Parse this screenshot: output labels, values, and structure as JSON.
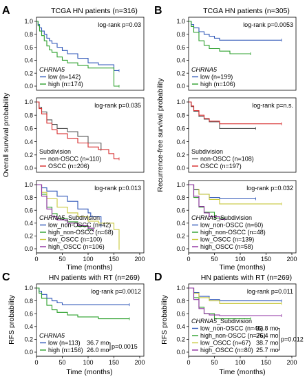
{
  "panels": [
    {
      "key": "A-top",
      "letter": "A",
      "title": "TCGA HN patients (n=316)",
      "logrank": "log-rank p=0.03",
      "legend_title": "CHRNA5",
      "legend_title_style": "italic",
      "legend": [
        {
          "label": "low (n=142)",
          "color": "#2e56b8"
        },
        {
          "label": "high (n=174)",
          "color": "#2ca02c"
        }
      ],
      "medians": [],
      "median_p": ""
    },
    {
      "key": "A-mid",
      "letter": "",
      "title": "",
      "logrank": "log-rank p=0.035",
      "legend_title": "Subdivision",
      "legend_title_style": "normal",
      "legend": [
        {
          "label": "non-OSCC (n=110)",
          "color": "#555555"
        },
        {
          "label": "OSCC (n=206)",
          "color": "#d62728"
        }
      ],
      "medians": [],
      "median_p": ""
    },
    {
      "key": "A-bot",
      "letter": "",
      "title": "",
      "logrank": "log-rank p=0.013",
      "legend_title": "CHRNA5_Subdivision",
      "legend_title_style": "italic-prefix",
      "legend": [
        {
          "label": "low_non-OSCC (n=42)",
          "color": "#2e56b8"
        },
        {
          "label": "high_non-OSCC (n=68)",
          "color": "#2ca02c"
        },
        {
          "label": "low_OSCC (n=100)",
          "color": "#c8c83a"
        },
        {
          "label": "high_OSCC (n=106)",
          "color": "#8e2ea0"
        }
      ],
      "medians": [],
      "median_p": ""
    },
    {
      "key": "B-top",
      "letter": "B",
      "title": "TCGA HN patients (n=305)",
      "logrank": "log-rank p=0.0053",
      "legend_title": "CHRNA5",
      "legend_title_style": "italic",
      "legend": [
        {
          "label": "low (n=199)",
          "color": "#2e56b8"
        },
        {
          "label": "high (n=106)",
          "color": "#2ca02c"
        }
      ],
      "medians": [],
      "median_p": ""
    },
    {
      "key": "B-mid",
      "letter": "",
      "title": "",
      "logrank": "log-rank p=n.s.",
      "legend_title": "Subdivision",
      "legend_title_style": "normal",
      "legend": [
        {
          "label": "non-OSCC (n=108)",
          "color": "#555555"
        },
        {
          "label": "OSCC (n=197)",
          "color": "#d62728"
        }
      ],
      "medians": [],
      "median_p": ""
    },
    {
      "key": "B-bot",
      "letter": "",
      "title": "",
      "logrank": "log-rank p=0.032",
      "legend_title": "CHRNA5_Subdivision",
      "legend_title_style": "italic-prefix",
      "legend": [
        {
          "label": "low_non-OSCC (n=60)",
          "color": "#2e56b8"
        },
        {
          "label": "high_non-OSCC (n=48)",
          "color": "#2ca02c"
        },
        {
          "label": "low_OSCC (n=139)",
          "color": "#c8c83a"
        },
        {
          "label": "high_OSCC (n=58)",
          "color": "#8e2ea0"
        }
      ],
      "medians": [],
      "median_p": ""
    },
    {
      "key": "C",
      "letter": "C",
      "title": "HN patients with RT (n=269)",
      "logrank": "log-rank p=0.0012",
      "legend_title": "CHRNA5",
      "legend_title_style": "italic",
      "legend": [
        {
          "label": "low (n=113)",
          "color": "#2e56b8"
        },
        {
          "label": "high (n=156)",
          "color": "#2ca02c"
        }
      ],
      "medians": [
        {
          "text": "36.7 mo",
          "color": "#2e56b8"
        },
        {
          "text": "26.0 mo",
          "color": "#2ca02c"
        }
      ],
      "median_p": "p=0.0015"
    },
    {
      "key": "D",
      "letter": "D",
      "title": "HN patients with RT (n=269)",
      "logrank": "log-rank p=0.011",
      "legend_title": "CHRNA5_Subdivision",
      "legend_title_style": "italic-prefix",
      "legend": [
        {
          "label": "low_non-OSCC (n=46)",
          "color": "#2e56b8"
        },
        {
          "label": "high_non-OSCC (n=76)",
          "color": "#2ca02c"
        },
        {
          "label": "low_OSCC (n=67)",
          "color": "#c8c83a"
        },
        {
          "label": "high_OSCC (n=80)",
          "color": "#8e2ea0"
        }
      ],
      "medians": [
        {
          "text": "33.8 mo",
          "color": "#2e56b8"
        },
        {
          "text": "26.4 mo",
          "color": "#2ca02c"
        },
        {
          "text": "38.7 mo",
          "color": "#c8c83a"
        },
        {
          "text": "25.7 mo",
          "color": "#8e2ea0"
        }
      ],
      "median_p": "p=0.012"
    }
  ],
  "axis_labels": {
    "A_ylabel": "Overall survival probability",
    "B_ylabel": "Recurrence-free survival probability",
    "C_ylabel": "RFS probability",
    "D_ylabel": "RFS probability",
    "xlabel": "Time (months)"
  },
  "chart_data": [
    {
      "panel": "A-top",
      "type": "line",
      "xlim": [
        0,
        200
      ],
      "ylim": [
        0,
        1
      ],
      "xticks": [],
      "yticks": [
        "0.0",
        "0.2",
        "0.4",
        "0.6",
        "0.8",
        "1.0"
      ],
      "series": [
        {
          "name": "low (n=142)",
          "color": "#2e56b8",
          "x": [
            0,
            3,
            6,
            10,
            15,
            20,
            25,
            30,
            40,
            50,
            60,
            80,
            100,
            120,
            150,
            160
          ],
          "y": [
            1.0,
            0.95,
            0.9,
            0.85,
            0.8,
            0.74,
            0.7,
            0.66,
            0.6,
            0.55,
            0.5,
            0.43,
            0.36,
            0.33,
            0.24,
            0.24
          ]
        },
        {
          "name": "high (n=174)",
          "color": "#2ca02c",
          "x": [
            0,
            3,
            6,
            10,
            15,
            20,
            25,
            30,
            40,
            50,
            60,
            80,
            100,
            120,
            150,
            160
          ],
          "y": [
            1.0,
            0.93,
            0.85,
            0.78,
            0.7,
            0.62,
            0.56,
            0.52,
            0.45,
            0.4,
            0.36,
            0.32,
            0.28,
            0.28,
            0.0,
            0.0
          ]
        }
      ]
    },
    {
      "panel": "A-mid",
      "type": "line",
      "xlim": [
        0,
        200
      ],
      "ylim": [
        0,
        1
      ],
      "xticks": [],
      "yticks": [
        "0.0",
        "0.2",
        "0.4",
        "0.6",
        "0.8",
        "1.0"
      ],
      "series": [
        {
          "name": "non-OSCC (n=110)",
          "color": "#555555",
          "x": [
            0,
            5,
            10,
            20,
            30,
            40,
            60,
            80,
            100,
            125
          ],
          "y": [
            1.0,
            0.92,
            0.85,
            0.73,
            0.66,
            0.6,
            0.55,
            0.48,
            0.38,
            0.28
          ]
        },
        {
          "name": "OSCC (n=206)",
          "color": "#d62728",
          "x": [
            0,
            5,
            10,
            20,
            30,
            40,
            60,
            80,
            100,
            120,
            140,
            150,
            160
          ],
          "y": [
            1.0,
            0.9,
            0.82,
            0.68,
            0.58,
            0.52,
            0.45,
            0.38,
            0.32,
            0.28,
            0.22,
            0.14,
            0.14
          ]
        }
      ]
    },
    {
      "panel": "A-bot",
      "type": "line",
      "xlim": [
        0,
        200
      ],
      "ylim": [
        0,
        1
      ],
      "xticks": [
        "0",
        "50",
        "100",
        "150",
        "200"
      ],
      "yticks": [
        "0.0",
        "0.2",
        "0.4",
        "0.6",
        "0.8",
        "1.0"
      ],
      "series": [
        {
          "name": "low_non-OSCC (n=42)",
          "color": "#2e56b8",
          "x": [
            0,
            10,
            20,
            40,
            60,
            80,
            100,
            105,
            125
          ],
          "y": [
            1.0,
            0.95,
            0.9,
            0.82,
            0.74,
            0.62,
            0.56,
            0.5,
            0.35
          ]
        },
        {
          "name": "high_non-OSCC (n=68)",
          "color": "#2ca02c",
          "x": [
            0,
            10,
            20,
            30,
            40,
            60,
            80,
            100,
            110
          ],
          "y": [
            1.0,
            0.85,
            0.65,
            0.55,
            0.47,
            0.42,
            0.35,
            0.3,
            0.28
          ]
        },
        {
          "name": "low_OSCC (n=100)",
          "color": "#c8c83a",
          "x": [
            0,
            10,
            20,
            40,
            60,
            80,
            100,
            120,
            150,
            160
          ],
          "y": [
            1.0,
            0.88,
            0.78,
            0.65,
            0.56,
            0.5,
            0.43,
            0.4,
            0.3,
            0.0
          ]
        },
        {
          "name": "high_OSCC (n=106)",
          "color": "#8e2ea0",
          "x": [
            0,
            10,
            20,
            30,
            40,
            60,
            80,
            100,
            110
          ],
          "y": [
            1.0,
            0.82,
            0.62,
            0.5,
            0.45,
            0.4,
            0.36,
            0.32,
            0.28
          ]
        }
      ]
    },
    {
      "panel": "B-top",
      "type": "line",
      "xlim": [
        0,
        200
      ],
      "ylim": [
        0,
        1
      ],
      "xticks": [],
      "yticks": [
        "0.0",
        "0.2",
        "0.4",
        "0.6",
        "0.8",
        "1.0"
      ],
      "series": [
        {
          "name": "low (n=199)",
          "color": "#2e56b8",
          "x": [
            0,
            5,
            10,
            20,
            30,
            40,
            50,
            60,
            100,
            180
          ],
          "y": [
            1.0,
            0.95,
            0.9,
            0.84,
            0.8,
            0.77,
            0.74,
            0.71,
            0.71,
            0.71
          ]
        },
        {
          "name": "high (n=106)",
          "color": "#2ca02c",
          "x": [
            0,
            5,
            10,
            20,
            30,
            40,
            60,
            80,
            120
          ],
          "y": [
            1.0,
            0.92,
            0.83,
            0.7,
            0.63,
            0.58,
            0.54,
            0.5,
            0.5
          ]
        }
      ]
    },
    {
      "panel": "B-mid",
      "type": "line",
      "xlim": [
        0,
        200
      ],
      "ylim": [
        0,
        1
      ],
      "xticks": [],
      "yticks": [
        "0.0",
        "0.2",
        "0.4",
        "0.6",
        "0.8",
        "1.0"
      ],
      "series": [
        {
          "name": "non-OSCC (n=108)",
          "color": "#555555",
          "x": [
            0,
            5,
            10,
            20,
            30,
            40,
            60,
            130
          ],
          "y": [
            1.0,
            0.93,
            0.86,
            0.78,
            0.74,
            0.7,
            0.6,
            0.6
          ]
        },
        {
          "name": "OSCC (n=197)",
          "color": "#d62728",
          "x": [
            0,
            5,
            10,
            20,
            30,
            40,
            60,
            100,
            180
          ],
          "y": [
            1.0,
            0.94,
            0.87,
            0.8,
            0.75,
            0.71,
            0.67,
            0.67,
            0.67
          ]
        }
      ]
    },
    {
      "panel": "B-bot",
      "type": "line",
      "xlim": [
        0,
        200
      ],
      "ylim": [
        0,
        1
      ],
      "xticks": [
        "0",
        "50",
        "100",
        "150",
        "200"
      ],
      "yticks": [
        "0.0",
        "0.2",
        "0.4",
        "0.6",
        "0.8",
        "1.0"
      ],
      "series": [
        {
          "name": "low_non-OSCC (n=60)",
          "color": "#2e56b8",
          "x": [
            0,
            10,
            20,
            40,
            60,
            130
          ],
          "y": [
            1.0,
            0.92,
            0.85,
            0.8,
            0.78,
            0.78
          ]
        },
        {
          "name": "high_non-OSCC (n=48)",
          "color": "#2ca02c",
          "x": [
            0,
            10,
            20,
            30,
            50,
            70
          ],
          "y": [
            1.0,
            0.8,
            0.65,
            0.57,
            0.48,
            0.48
          ]
        },
        {
          "name": "low_OSCC (n=139)",
          "color": "#c8c83a",
          "x": [
            0,
            10,
            20,
            40,
            60,
            180
          ],
          "y": [
            1.0,
            0.93,
            0.85,
            0.77,
            0.7,
            0.7
          ]
        },
        {
          "name": "high_OSCC (n=58)",
          "color": "#8e2ea0",
          "x": [
            0,
            10,
            20,
            30,
            40,
            60,
            70
          ],
          "y": [
            1.0,
            0.82,
            0.66,
            0.56,
            0.5,
            0.46,
            0.46
          ]
        }
      ]
    },
    {
      "panel": "C",
      "type": "line",
      "xlim": [
        0,
        200
      ],
      "ylim": [
        0,
        1
      ],
      "xticks": [
        "0",
        "50",
        "100",
        "150",
        "200"
      ],
      "yticks": [
        "0.0",
        "0.2",
        "0.4",
        "0.6",
        "0.8",
        "1.0"
      ],
      "series": [
        {
          "name": "low (n=113)",
          "color": "#2e56b8",
          "x": [
            0,
            5,
            10,
            20,
            30,
            40,
            50,
            180
          ],
          "y": [
            1.0,
            0.95,
            0.9,
            0.84,
            0.8,
            0.77,
            0.74,
            0.74
          ]
        },
        {
          "name": "high (n=156)",
          "color": "#2ca02c",
          "x": [
            0,
            5,
            10,
            20,
            30,
            40,
            60,
            80,
            120,
            180
          ],
          "y": [
            1.0,
            0.92,
            0.84,
            0.73,
            0.66,
            0.62,
            0.58,
            0.55,
            0.52,
            0.52
          ]
        }
      ]
    },
    {
      "panel": "D",
      "type": "line",
      "xlim": [
        0,
        200
      ],
      "ylim": [
        0,
        1
      ],
      "xticks": [
        "0",
        "50",
        "100",
        "150",
        "200"
      ],
      "yticks": [
        "0.0",
        "0.2",
        "0.4",
        "0.6",
        "0.8",
        "1.0"
      ],
      "series": [
        {
          "name": "low_non-OSCC (n=46)",
          "color": "#2e56b8",
          "x": [
            0,
            10,
            20,
            40,
            60,
            180
          ],
          "y": [
            1.0,
            0.93,
            0.87,
            0.82,
            0.8,
            0.8
          ]
        },
        {
          "name": "high_non-OSCC (n=76)",
          "color": "#2ca02c",
          "x": [
            0,
            10,
            20,
            30,
            50,
            120
          ],
          "y": [
            1.0,
            0.85,
            0.7,
            0.6,
            0.52,
            0.52
          ]
        },
        {
          "name": "low_OSCC (n=67)",
          "color": "#c8c83a",
          "x": [
            0,
            10,
            20,
            40,
            60,
            180
          ],
          "y": [
            1.0,
            0.92,
            0.85,
            0.8,
            0.76,
            0.76
          ]
        },
        {
          "name": "high_OSCC (n=80)",
          "color": "#8e2ea0",
          "x": [
            0,
            10,
            20,
            30,
            40,
            60,
            180
          ],
          "y": [
            1.0,
            0.82,
            0.68,
            0.6,
            0.58,
            0.57,
            0.57
          ]
        }
      ]
    }
  ]
}
